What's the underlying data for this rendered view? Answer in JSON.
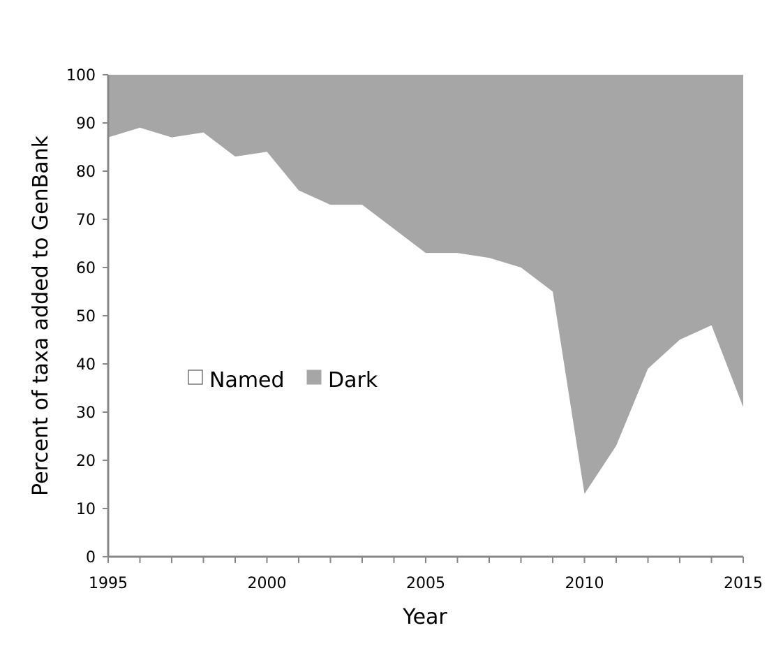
{
  "chart_data": {
    "type": "area",
    "stacked": true,
    "percent": true,
    "xlabel": "Year",
    "ylabel": "Percent of taxa added to GenBank",
    "x": [
      1995,
      1996,
      1997,
      1998,
      1999,
      2000,
      2001,
      2002,
      2003,
      2004,
      2005,
      2006,
      2007,
      2008,
      2009,
      2010,
      2011,
      2012,
      2013,
      2014,
      2015
    ],
    "series": [
      {
        "name": "Named",
        "values": [
          87,
          89,
          87,
          88,
          83,
          84,
          76,
          73,
          73,
          68,
          63,
          63,
          62,
          60,
          55,
          13,
          23,
          39,
          45,
          48,
          31
        ]
      },
      {
        "name": "Dark",
        "values": [
          13,
          11,
          13,
          12,
          17,
          16,
          24,
          27,
          27,
          32,
          37,
          37,
          38,
          40,
          45,
          87,
          77,
          61,
          55,
          52,
          69
        ]
      }
    ],
    "xlim": [
      1995,
      2015
    ],
    "ylim": [
      0,
      100
    ],
    "xticks_labeled": [
      "1995",
      "2000",
      "2005",
      "2010",
      "2015"
    ],
    "yticks": [
      "0",
      "10",
      "20",
      "30",
      "40",
      "50",
      "60",
      "70",
      "80",
      "90",
      "100"
    ],
    "legend_position": "center-left",
    "grid": false,
    "colors": {
      "Named": "#ffffff",
      "Dark": "#a6a6a6"
    }
  }
}
